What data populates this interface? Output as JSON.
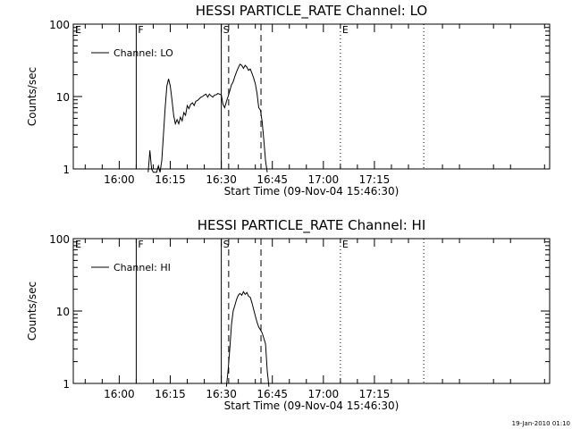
{
  "chart_data": [
    {
      "type": "line",
      "title": "HESSI PARTICLE_RATE Channel: LO",
      "xlabel": "Start Time (09-Nov-04 15:46:30)",
      "ylabel": "Counts/sec",
      "xlim": [
        "15:46:30",
        "18:06:30"
      ],
      "ylim": [
        1,
        100
      ],
      "yscale": "log",
      "xticks": [
        "16:00",
        "16:15",
        "16:30",
        "16:45",
        "17:00",
        "17:15"
      ],
      "yticks": [
        "1",
        "10",
        "100"
      ],
      "legend": {
        "placement": "top-left",
        "entries": [
          "Channel: LO"
        ]
      },
      "markers": [
        {
          "label": "E",
          "time": "15:46:30",
          "style": "none"
        },
        {
          "label": "F",
          "time": "16:05:00",
          "style": "solid"
        },
        {
          "label": "S",
          "time": "16:30:00",
          "style": "solid"
        },
        {
          "label": "",
          "time": "16:32:10",
          "style": "dashed"
        },
        {
          "label": "",
          "time": "16:41:40",
          "style": "dashed"
        },
        {
          "label": "E",
          "time": "17:05:00",
          "style": "dotted"
        },
        {
          "label": "",
          "time": "17:29:30",
          "style": "dotted"
        }
      ],
      "series": [
        {
          "name": "Channel: LO",
          "points": [
            [
              "16:08:30",
              0.9
            ],
            [
              "16:09:00",
              1.8
            ],
            [
              "16:09:30",
              1.0
            ],
            [
              "16:10:00",
              0.9
            ],
            [
              "16:11:00",
              0.9
            ],
            [
              "16:11:30",
              1.1
            ],
            [
              "16:12:00",
              0.9
            ],
            [
              "16:12:30",
              1.3
            ],
            [
              "16:13:00",
              3.0
            ],
            [
              "16:13:30",
              7.0
            ],
            [
              "16:14:00",
              14.0
            ],
            [
              "16:14:30",
              17.5
            ],
            [
              "16:15:00",
              14.0
            ],
            [
              "16:15:30",
              9.0
            ],
            [
              "16:16:00",
              5.5
            ],
            [
              "16:16:30",
              4.2
            ],
            [
              "16:17:00",
              4.8
            ],
            [
              "16:17:30",
              4.2
            ],
            [
              "16:18:00",
              5.2
            ],
            [
              "16:18:30",
              4.6
            ],
            [
              "16:19:00",
              6.0
            ],
            [
              "16:19:30",
              5.5
            ],
            [
              "16:20:00",
              7.5
            ],
            [
              "16:20:30",
              6.8
            ],
            [
              "16:21:00",
              7.8
            ],
            [
              "16:21:30",
              8.2
            ],
            [
              "16:22:00",
              7.5
            ],
            [
              "16:22:30",
              8.6
            ],
            [
              "16:23:00",
              8.8
            ],
            [
              "16:23:30",
              9.3
            ],
            [
              "16:24:00",
              9.8
            ],
            [
              "16:24:30",
              10.0
            ],
            [
              "16:25:00",
              10.5
            ],
            [
              "16:25:30",
              10.8
            ],
            [
              "16:26:00",
              9.8
            ],
            [
              "16:26:30",
              10.8
            ],
            [
              "16:27:00",
              10.2
            ],
            [
              "16:27:30",
              9.8
            ],
            [
              "16:28:00",
              10.5
            ],
            [
              "16:28:30",
              10.6
            ],
            [
              "16:29:00",
              11.0
            ],
            [
              "16:29:30",
              10.8
            ],
            [
              "16:30:00",
              10.5
            ],
            [
              "16:30:30",
              7.8
            ],
            [
              "16:31:00",
              7.0
            ],
            [
              "16:31:30",
              8.5
            ],
            [
              "16:32:00",
              10.0
            ],
            [
              "16:32:30",
              12.0
            ],
            [
              "16:33:00",
              14.5
            ],
            [
              "16:33:30",
              16.0
            ],
            [
              "16:34:00",
              19.0
            ],
            [
              "16:34:30",
              22.0
            ],
            [
              "16:35:00",
              25.0
            ],
            [
              "16:35:30",
              28.0
            ],
            [
              "16:36:00",
              27.0
            ],
            [
              "16:36:30",
              24.5
            ],
            [
              "16:37:00",
              27.0
            ],
            [
              "16:37:30",
              25.5
            ],
            [
              "16:38:00",
              23.0
            ],
            [
              "16:38:30",
              24.0
            ],
            [
              "16:39:00",
              21.0
            ],
            [
              "16:39:30",
              18.0
            ],
            [
              "16:40:00",
              15.0
            ],
            [
              "16:40:30",
              11.0
            ],
            [
              "16:41:00",
              7.0
            ],
            [
              "16:41:30",
              6.5
            ],
            [
              "16:42:00",
              4.5
            ],
            [
              "16:42:30",
              2.5
            ],
            [
              "16:43:00",
              1.3
            ],
            [
              "16:43:30",
              0.9
            ]
          ]
        }
      ]
    },
    {
      "type": "line",
      "title": "HESSI PARTICLE_RATE Channel: HI",
      "xlabel": "Start Time (09-Nov-04 15:46:30)",
      "ylabel": "Counts/sec",
      "xlim": [
        "15:46:30",
        "18:06:30"
      ],
      "ylim": [
        1,
        100
      ],
      "yscale": "log",
      "xticks": [
        "16:00",
        "16:15",
        "16:30",
        "16:45",
        "17:00",
        "17:15"
      ],
      "yticks": [
        "1",
        "10",
        "100"
      ],
      "legend": {
        "placement": "top-left",
        "entries": [
          "Channel: HI"
        ]
      },
      "markers": [
        {
          "label": "E",
          "time": "15:46:30",
          "style": "none"
        },
        {
          "label": "F",
          "time": "16:05:00",
          "style": "solid"
        },
        {
          "label": "S",
          "time": "16:30:00",
          "style": "solid"
        },
        {
          "label": "",
          "time": "16:32:10",
          "style": "dashed"
        },
        {
          "label": "",
          "time": "16:41:40",
          "style": "dashed"
        },
        {
          "label": "E",
          "time": "17:05:00",
          "style": "dotted"
        },
        {
          "label": "",
          "time": "17:29:30",
          "style": "dotted"
        }
      ],
      "series": [
        {
          "name": "Channel: HI",
          "points": [
            [
              "16:31:30",
              0.9
            ],
            [
              "16:32:00",
              1.5
            ],
            [
              "16:32:30",
              3.0
            ],
            [
              "16:33:00",
              6.5
            ],
            [
              "16:33:30",
              10.0
            ],
            [
              "16:34:00",
              12.0
            ],
            [
              "16:34:30",
              14.5
            ],
            [
              "16:35:00",
              16.5
            ],
            [
              "16:35:30",
              17.5
            ],
            [
              "16:36:00",
              16.5
            ],
            [
              "16:36:30",
              18.5
            ],
            [
              "16:37:00",
              17.0
            ],
            [
              "16:37:30",
              18.0
            ],
            [
              "16:38:00",
              16.0
            ],
            [
              "16:38:30",
              15.5
            ],
            [
              "16:39:00",
              13.0
            ],
            [
              "16:39:30",
              10.5
            ],
            [
              "16:40:00",
              8.5
            ],
            [
              "16:40:30",
              7.0
            ],
            [
              "16:41:00",
              6.0
            ],
            [
              "16:41:30",
              5.5
            ],
            [
              "16:42:00",
              5.0
            ],
            [
              "16:42:30",
              4.2
            ],
            [
              "16:43:00",
              3.5
            ],
            [
              "16:43:30",
              1.5
            ],
            [
              "16:44:00",
              0.9
            ]
          ]
        }
      ]
    }
  ],
  "footer": {
    "timestamp": "19-Jan-2010 01:10"
  }
}
